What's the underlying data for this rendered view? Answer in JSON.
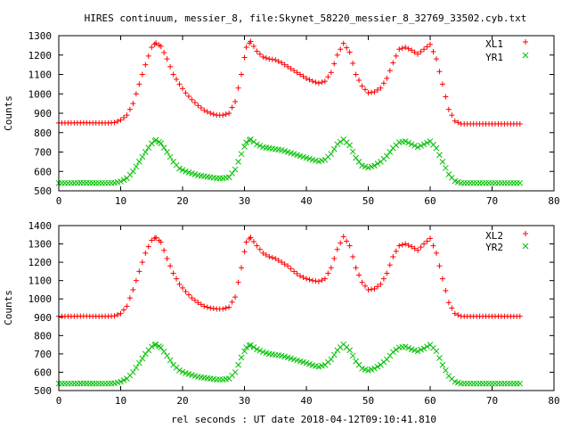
{
  "title": "HIRES continuum, messier_8, file:Skynet_58220_messier_8_32769_33502.cyb.txt",
  "xlabel": "rel seconds : UT date 2018-04-12T09:10:41.810",
  "chart_data": [
    {
      "type": "scatter",
      "ylabel": "Counts",
      "xlim": [
        0,
        80
      ],
      "ylim": [
        500,
        1300
      ],
      "xticks": [
        0,
        10,
        20,
        30,
        40,
        50,
        60,
        70,
        80
      ],
      "yticks": [
        500,
        600,
        700,
        800,
        900,
        1000,
        1100,
        1200,
        1300
      ],
      "legend_position": "top-right",
      "series": [
        {
          "name": "XL1",
          "marker": "+",
          "color": "#ff0000",
          "x": [
            0,
            2,
            4,
            6,
            8,
            9,
            10,
            11,
            12,
            13,
            14,
            15,
            15.7,
            16.5,
            17.5,
            18.5,
            19.5,
            20.5,
            21.5,
            22.5,
            23.5,
            24.5,
            25.5,
            26.5,
            27.5,
            28.5,
            29.5,
            30.3,
            31,
            32,
            33,
            34,
            35,
            36,
            37,
            38,
            39,
            40,
            41,
            42,
            43,
            44,
            45,
            46,
            47,
            48,
            49,
            50,
            51,
            52,
            53,
            54,
            55,
            56,
            57,
            58,
            59,
            60,
            61,
            62,
            63,
            64,
            65,
            66,
            68,
            70,
            72,
            74.5
          ],
          "y": [
            850,
            850,
            851,
            850,
            850,
            852,
            865,
            890,
            950,
            1050,
            1150,
            1240,
            1262,
            1245,
            1180,
            1100,
            1050,
            1005,
            970,
            940,
            915,
            900,
            890,
            890,
            900,
            960,
            1100,
            1240,
            1270,
            1220,
            1190,
            1180,
            1175,
            1160,
            1140,
            1120,
            1100,
            1080,
            1065,
            1055,
            1065,
            1110,
            1200,
            1260,
            1215,
            1100,
            1040,
            1005,
            1010,
            1030,
            1080,
            1160,
            1230,
            1240,
            1225,
            1205,
            1230,
            1255,
            1180,
            1050,
            920,
            860,
            845,
            845,
            845,
            845,
            845,
            845
          ]
        },
        {
          "name": "YR1",
          "marker": "x",
          "color": "#00c000",
          "x": [
            0,
            2,
            4,
            6,
            8,
            9,
            10,
            11,
            12,
            13,
            14,
            15,
            15.7,
            16.5,
            17.5,
            18.5,
            19.5,
            20.5,
            21.5,
            22.5,
            23.5,
            24.5,
            25.5,
            26.5,
            27.5,
            28.5,
            29.5,
            30.3,
            31,
            32,
            33,
            34,
            35,
            36,
            37,
            38,
            39,
            40,
            41,
            42,
            43,
            44,
            45,
            46,
            47,
            48,
            49,
            50,
            51,
            52,
            53,
            54,
            55,
            56,
            57,
            58,
            59,
            60,
            61,
            62,
            63,
            64,
            65,
            66,
            68,
            70,
            72,
            74.5
          ],
          "y": [
            540,
            540,
            541,
            540,
            540,
            541,
            548,
            565,
            600,
            650,
            700,
            745,
            762,
            745,
            700,
            650,
            615,
            600,
            590,
            580,
            575,
            570,
            565,
            565,
            570,
            610,
            690,
            750,
            765,
            740,
            725,
            720,
            715,
            710,
            700,
            690,
            680,
            670,
            660,
            652,
            660,
            690,
            740,
            765,
            735,
            670,
            630,
            620,
            630,
            650,
            680,
            720,
            750,
            755,
            740,
            725,
            740,
            755,
            720,
            650,
            585,
            550,
            540,
            540,
            540,
            540,
            540,
            540
          ]
        }
      ]
    },
    {
      "type": "scatter",
      "ylabel": "Counts",
      "xlim": [
        0,
        80
      ],
      "ylim": [
        500,
        1400
      ],
      "xticks": [
        0,
        10,
        20,
        30,
        40,
        50,
        60,
        70,
        80
      ],
      "yticks": [
        500,
        600,
        700,
        800,
        900,
        1000,
        1100,
        1200,
        1300,
        1400
      ],
      "legend_position": "top-right",
      "series": [
        {
          "name": "XL2",
          "marker": "+",
          "color": "#ff0000",
          "x": [
            0,
            2,
            4,
            6,
            8,
            9,
            10,
            11,
            12,
            13,
            14,
            15,
            15.7,
            16.5,
            17.5,
            18.5,
            19.5,
            20.5,
            21.5,
            22.5,
            23.5,
            24.5,
            25.5,
            26.5,
            27.5,
            28.5,
            29.5,
            30.3,
            31,
            32,
            33,
            34,
            35,
            36,
            37,
            38,
            39,
            40,
            41,
            42,
            43,
            44,
            45,
            46,
            47,
            48,
            49,
            50,
            51,
            52,
            53,
            54,
            55,
            56,
            57,
            58,
            59,
            60,
            61,
            62,
            63,
            64,
            65,
            66,
            68,
            70,
            72,
            74.5
          ],
          "y": [
            905,
            905,
            906,
            905,
            905,
            907,
            920,
            960,
            1050,
            1150,
            1250,
            1320,
            1335,
            1310,
            1220,
            1140,
            1080,
            1040,
            1005,
            980,
            960,
            950,
            945,
            945,
            955,
            1010,
            1170,
            1310,
            1335,
            1290,
            1250,
            1230,
            1220,
            1200,
            1180,
            1150,
            1125,
            1110,
            1100,
            1095,
            1110,
            1170,
            1270,
            1340,
            1290,
            1170,
            1090,
            1050,
            1055,
            1080,
            1140,
            1230,
            1290,
            1300,
            1285,
            1265,
            1300,
            1330,
            1250,
            1110,
            980,
            920,
            905,
            905,
            905,
            905,
            905,
            905
          ]
        },
        {
          "name": "YR2",
          "marker": "x",
          "color": "#00c000",
          "x": [
            0,
            2,
            4,
            6,
            8,
            9,
            10,
            11,
            12,
            13,
            14,
            15,
            15.7,
            16.5,
            17.5,
            18.5,
            19.5,
            20.5,
            21.5,
            22.5,
            23.5,
            24.5,
            25.5,
            26.5,
            27.5,
            28.5,
            29.5,
            30.3,
            31,
            32,
            33,
            34,
            35,
            36,
            37,
            38,
            39,
            40,
            41,
            42,
            43,
            44,
            45,
            46,
            47,
            48,
            49,
            50,
            51,
            52,
            53,
            54,
            55,
            56,
            57,
            58,
            59,
            60,
            61,
            62,
            63,
            64,
            65,
            66,
            68,
            70,
            72,
            74.5
          ],
          "y": [
            538,
            538,
            539,
            538,
            538,
            540,
            548,
            565,
            600,
            650,
            700,
            740,
            752,
            735,
            690,
            640,
            610,
            595,
            585,
            575,
            570,
            565,
            560,
            560,
            565,
            600,
            680,
            735,
            748,
            725,
            710,
            700,
            695,
            690,
            680,
            670,
            660,
            650,
            638,
            630,
            640,
            670,
            720,
            752,
            720,
            660,
            620,
            610,
            620,
            640,
            670,
            710,
            735,
            740,
            725,
            715,
            730,
            750,
            715,
            640,
            580,
            548,
            538,
            538,
            538,
            538,
            538,
            538
          ]
        }
      ]
    }
  ]
}
